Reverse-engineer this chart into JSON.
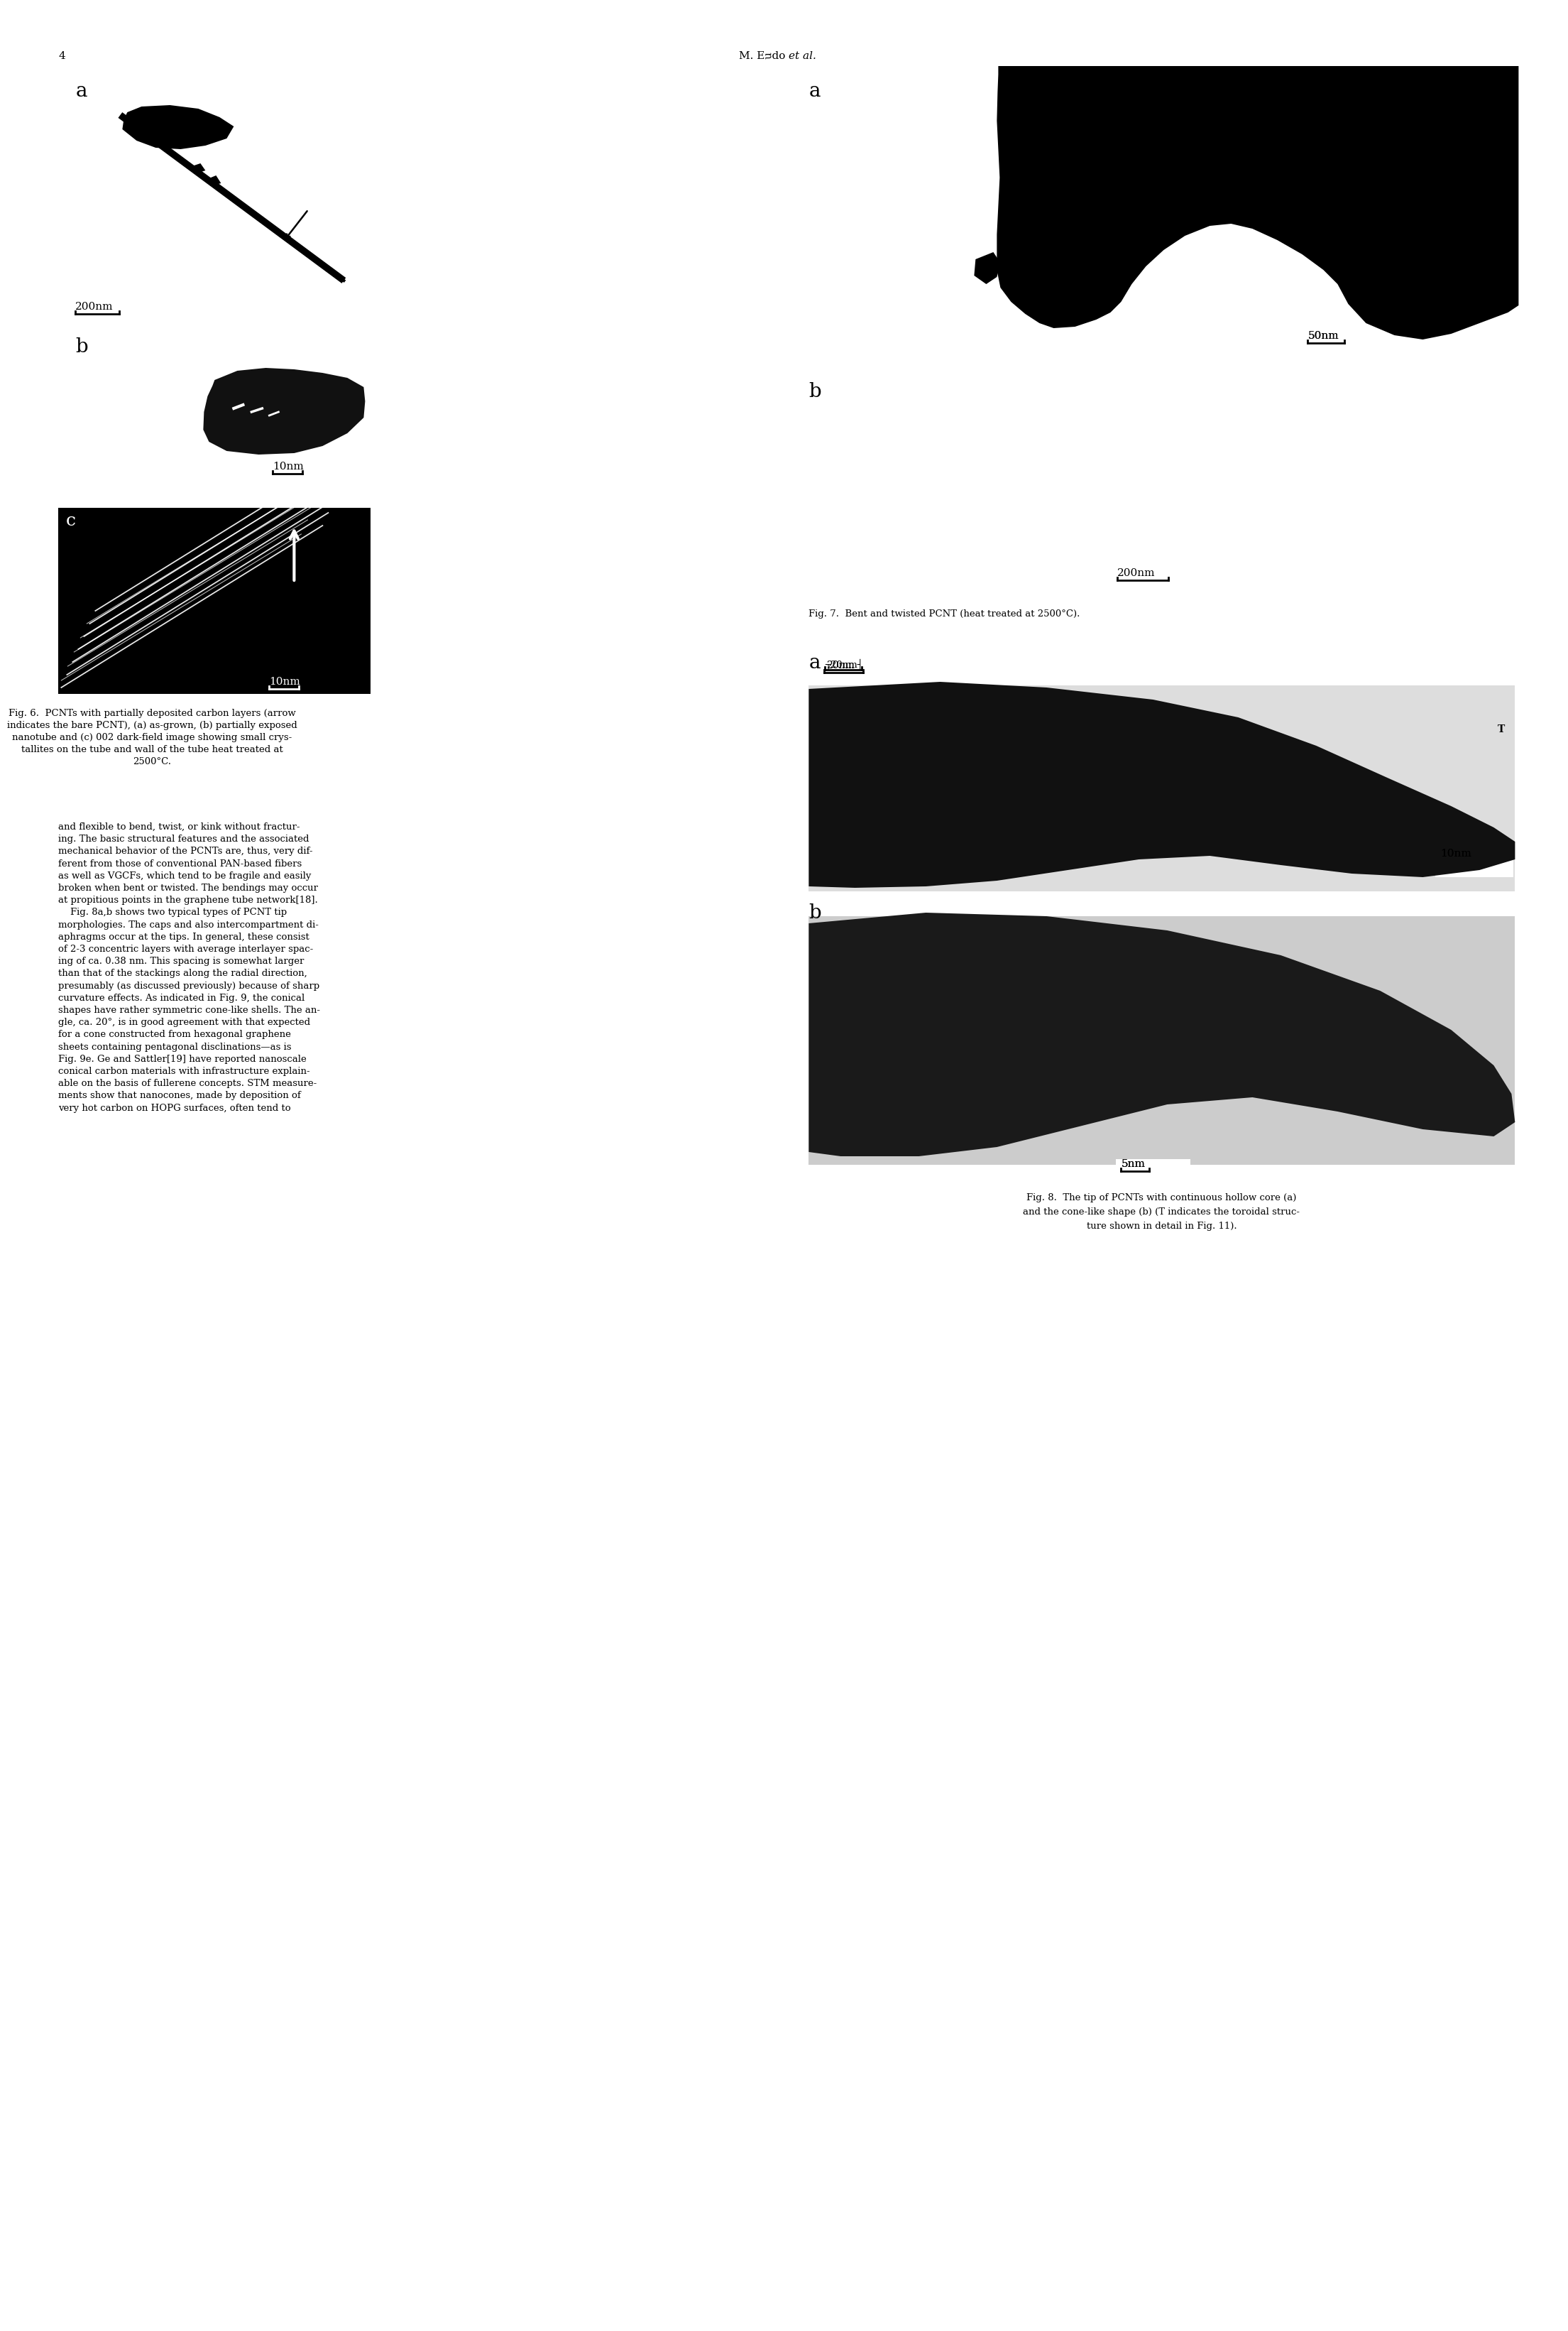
{
  "page_number": "4",
  "header_text": "M. Eᴝdo ",
  "header_italic": "et al.",
  "background_color": "#ffffff",
  "text_color": "#000000",
  "fig6_caption": "Fig. 6.  PCNTs with partially deposited carbon layers (arrow\nindicates the bare PCNT), (a) as-grown, (b) partially exposed\nnanotube and (c) 002 dark-field image showing small crys-\ntallites on the tube and wall of the tube heat treated at\n2500°C.",
  "fig7_caption": "Fig. 7.  Bent and twisted PCNT (heat treated at 2500°C).",
  "fig8_caption_line1": "Fig. 8.  The tip of PCNTs with continuous hollow core (a)",
  "fig8_caption_line2": "and the cone-like shape (b) (T indicates the toroidal struc-",
  "fig8_caption_line3": "ture shown in detail in Fig. 11).",
  "body_text_col1": "and flexible to bend, twist, or kink without fractur-\ning. The basic structural features and the associated\nmechanical behavior of the PCNTs are, thus, very dif-\nferent from those of conventional PAN-based fibers\nas well as VGCFs, which tend to be fragile and easily\nbroken when bent or twisted. The bendings may occur\nat propitious points in the graphene tube network[18].\n    Fig. 8a,b shows two typical types of PCNT tip\nmorphologies. The caps and also intercompartment di-\naphragms occur at the tips. In general, these consist\nof 2-3 concentric layers with average interlayer spac-\ning of ca. 0.38 nm. This spacing is somewhat larger\nthan that of the stackings along the radial direction,\npresumably (as discussed previously) because of sharp\ncurvature effects. As indicated in Fig. 9, the conical\nshapes have rather symmetric cone-like shells. The an-\ngle, ca. 20°, is in good agreement with that expected\nfor a cone constructed from hexagonal graphene\nsheets containing pentagonal disclinations—as is\nFig. 9e. Ge and Sattler[19] have reported nanoscale\nconical carbon materials with infrastructure explain-\nable on the basis of fullerene concepts. STM measure-\nments show that nanocones, made by deposition of\nvery hot carbon on HOPG surfaces, often tend to"
}
